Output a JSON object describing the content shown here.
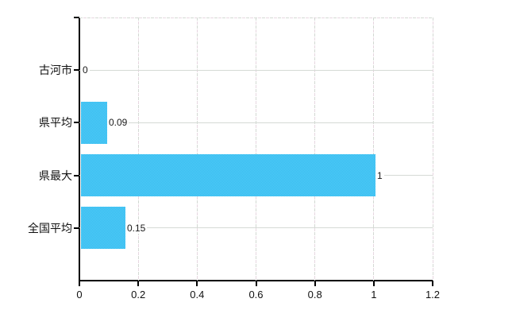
{
  "chart_data": {
    "type": "bar",
    "orientation": "horizontal",
    "title": "",
    "xlabel": "",
    "ylabel": "",
    "categories": [
      "古河市",
      "県平均",
      "県最大",
      "全国平均"
    ],
    "values": [
      0,
      0.09,
      1,
      0.15
    ],
    "value_labels": [
      "0",
      "0.09",
      "1",
      "0.15"
    ],
    "x_ticks": [
      0,
      0.2,
      0.4,
      0.6,
      0.8,
      1,
      1.2
    ],
    "x_tick_labels": [
      "0",
      "0.2",
      "0.4",
      "0.6",
      "0.8",
      "1",
      "1.2"
    ],
    "xlim": [
      0,
      1.2
    ],
    "grid": true,
    "legend": false,
    "bar_color": "#44c3f3",
    "grid_color_horizontal": "#d5dad5",
    "grid_color_vertical_dash": "#d3d9d3",
    "grid_color_vertical_dash_alt": "#e7d7e1",
    "axis_color": "#000000",
    "text_color": "#111111",
    "background_color": "#ffffff"
  },
  "layout_note": ""
}
